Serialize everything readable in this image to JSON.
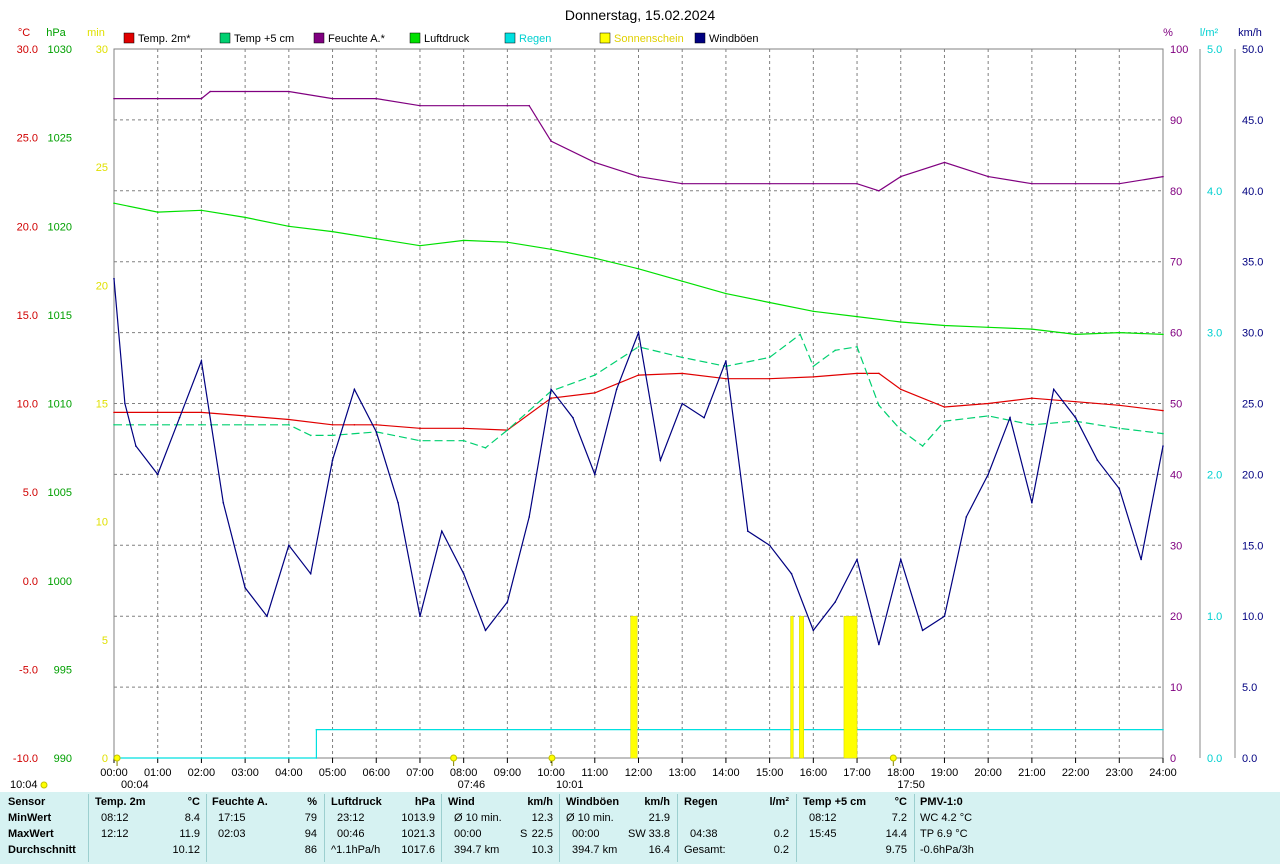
{
  "chart_data": {
    "type": "line",
    "title": "Donnerstag, 15.02.2024",
    "x_ticks": [
      "00:00",
      "01:00",
      "02:00",
      "03:00",
      "04:00",
      "05:00",
      "06:00",
      "07:00",
      "08:00",
      "09:00",
      "10:00",
      "11:00",
      "12:00",
      "13:00",
      "14:00",
      "15:00",
      "16:00",
      "17:00",
      "18:00",
      "19:00",
      "20:00",
      "21:00",
      "22:00",
      "23:00",
      "24:00"
    ],
    "axes": {
      "temp_c": {
        "label": "°C",
        "range": [
          -10,
          30
        ],
        "ticks": [
          "30.0",
          "25.0",
          "20.0",
          "15.0",
          "10.0",
          "5.0",
          "0.0",
          "-5.0",
          "-10.0"
        ],
        "color": "#d00000"
      },
      "pressure_hpa": {
        "label": "hPa",
        "range": [
          990,
          1030
        ],
        "ticks": [
          "1030",
          "1025",
          "1020",
          "1015",
          "1010",
          "1005",
          "1000",
          "995",
          "990"
        ],
        "color": "#00a000"
      },
      "sunshine_min": {
        "label": "min",
        "range": [
          0,
          30
        ],
        "ticks": [
          "30",
          "25",
          "20",
          "15",
          "10",
          "5",
          "0"
        ],
        "color": "#e0e000"
      },
      "humidity_pct": {
        "label": "%",
        "range": [
          0,
          100
        ],
        "ticks": [
          "100",
          "90",
          "80",
          "70",
          "60",
          "50",
          "40",
          "30",
          "20",
          "10",
          "0"
        ],
        "color": "#800080"
      },
      "rain_l": {
        "label": "l/m²",
        "range": [
          0,
          5
        ],
        "ticks": [
          "5.0",
          "4.0",
          "3.0",
          "2.0",
          "1.0",
          "0.0"
        ],
        "color": "#00d0d0"
      },
      "wind_kmh": {
        "label": "km/h",
        "range": [
          0,
          50
        ],
        "ticks": [
          "50.0",
          "45.0",
          "40.0",
          "35.0",
          "30.0",
          "25.0",
          "20.0",
          "15.0",
          "10.0",
          "5.0",
          "0.0"
        ],
        "color": "#000080"
      }
    },
    "legend": [
      {
        "name": "Temp. 2m*",
        "color": "#e00000"
      },
      {
        "name": "Temp +5 cm",
        "color": "#00d070"
      },
      {
        "name": "Feuchte A.*",
        "color": "#800080"
      },
      {
        "name": "Luftdruck",
        "color": "#00e000"
      },
      {
        "name": "Regen",
        "color": "#00e0e0"
      },
      {
        "name": "Sonnenschein",
        "color": "#ffff00"
      },
      {
        "name": "Windböen",
        "color": "#000080"
      }
    ],
    "legend_placement": "top",
    "grid": true,
    "series": [
      {
        "name": "Temp. 2m*",
        "axis": "temp_c",
        "color": "#e00000",
        "x": [
          0,
          1,
          2,
          3,
          4,
          5,
          5.5,
          6,
          7,
          8,
          9,
          10,
          11,
          12,
          13,
          14,
          15,
          16,
          17,
          17.5,
          18,
          19,
          20,
          21,
          22,
          23,
          24
        ],
        "y": [
          9.5,
          9.5,
          9.5,
          9.3,
          9.1,
          8.8,
          8.8,
          8.8,
          8.6,
          8.6,
          8.5,
          10.3,
          10.6,
          11.6,
          11.7,
          11.4,
          11.4,
          11.5,
          11.7,
          11.7,
          10.8,
          9.8,
          10.0,
          10.3,
          10.1,
          9.9,
          9.6
        ]
      },
      {
        "name": "Temp +5 cm",
        "axis": "temp_c",
        "color": "#00d070",
        "x": [
          0,
          1,
          2,
          3,
          4,
          4.5,
          5,
          6,
          7,
          8,
          8.5,
          9,
          10,
          11,
          12,
          13,
          14,
          15,
          15.7,
          16,
          16.5,
          17,
          17.5,
          18,
          18.5,
          19,
          20,
          21,
          22,
          23,
          24
        ],
        "y": [
          8.8,
          8.8,
          8.8,
          8.8,
          8.8,
          8.2,
          8.2,
          8.4,
          7.9,
          7.9,
          7.5,
          8.5,
          10.7,
          11.6,
          13.2,
          12.6,
          12.1,
          12.6,
          13.9,
          12.1,
          13.0,
          13.2,
          9.9,
          8.5,
          7.6,
          9.0,
          9.3,
          8.8,
          9.0,
          8.6,
          8.3
        ]
      },
      {
        "name": "Feuchte A.*",
        "axis": "humidity_pct",
        "color": "#800080",
        "x": [
          0,
          1,
          2,
          2.2,
          3,
          4,
          5,
          6,
          7,
          8,
          9,
          9.5,
          10,
          11,
          12,
          13,
          14,
          15,
          16,
          17,
          17.5,
          18,
          19,
          20,
          21,
          22,
          23,
          24
        ],
        "y": [
          93,
          93,
          93,
          94,
          94,
          94,
          93,
          93,
          92,
          92,
          92,
          92,
          87,
          84,
          82,
          81,
          81,
          81,
          81,
          81,
          80,
          82,
          84,
          82,
          81,
          81,
          81,
          82
        ]
      },
      {
        "name": "Luftdruck",
        "axis": "pressure_hpa",
        "color": "#00e000",
        "x": [
          0,
          1,
          2,
          3,
          4,
          5,
          6,
          7,
          8,
          9,
          10,
          11,
          12,
          13,
          14,
          15,
          16,
          17,
          18,
          19,
          20,
          21,
          22,
          23,
          24
        ],
        "y": [
          1021.3,
          1020.8,
          1020.9,
          1020.5,
          1020.0,
          1019.7,
          1019.3,
          1018.9,
          1019.2,
          1019.1,
          1018.7,
          1018.2,
          1017.6,
          1016.9,
          1016.2,
          1015.7,
          1015.2,
          1014.9,
          1014.6,
          1014.4,
          1014.3,
          1014.2,
          1013.9,
          1014.0,
          1013.9
        ]
      },
      {
        "name": "Windböen",
        "axis": "wind_kmh",
        "color": "#000080",
        "x": [
          0,
          0.25,
          0.5,
          1,
          1.5,
          2,
          2.5,
          3,
          3.5,
          4,
          4.5,
          5,
          5.5,
          6,
          6.5,
          7,
          7.5,
          8,
          8.5,
          9,
          9.5,
          10,
          10.5,
          11,
          11.5,
          12,
          12.5,
          13,
          13.5,
          14,
          14.5,
          15,
          15.5,
          16,
          16.5,
          17,
          17.5,
          18,
          18.5,
          19,
          19.5,
          20,
          20.5,
          21,
          21.5,
          22,
          22.5,
          23,
          23.5,
          24
        ],
        "y": [
          33.8,
          25,
          22,
          20,
          24,
          28,
          18,
          12,
          10,
          15,
          13,
          21,
          26,
          23,
          18,
          10,
          16,
          13,
          9,
          11,
          17,
          26,
          24,
          20,
          26,
          30,
          21,
          25,
          24,
          28,
          16,
          15,
          13,
          9,
          11,
          14,
          8,
          14,
          9,
          10,
          17,
          20,
          24,
          18,
          26,
          24,
          21,
          19,
          14,
          22
        ]
      },
      {
        "name": "Regen",
        "axis": "rain_l",
        "color": "#00e0e0",
        "x": [
          0,
          4.63,
          4.63,
          24
        ],
        "y": [
          0,
          0,
          0.2,
          0.2
        ]
      },
      {
        "name": "Sonnenschein",
        "axis": "sunshine_min",
        "color": "#ffff00",
        "bars": [
          {
            "x": 11.82,
            "w": 0.15,
            "v": 6
          },
          {
            "x": 15.48,
            "w": 0.06,
            "v": 6
          },
          {
            "x": 15.68,
            "w": 0.1,
            "v": 6
          },
          {
            "x": 16.7,
            "w": 0.3,
            "v": 6
          }
        ]
      }
    ],
    "events": [
      {
        "label": "10:04",
        "x": -2.0,
        "kind": "sunrise_label"
      },
      {
        "label": "00:04",
        "x": 0.07
      },
      {
        "label": "07:46",
        "x": 7.77
      },
      {
        "label": "10:01",
        "x": 10.02
      },
      {
        "label": "17:50",
        "x": 17.83
      }
    ]
  },
  "summary": {
    "sensor": {
      "h": "Sensor",
      "r1": "MinWert",
      "r2": "MaxWert",
      "r3": "Durchschnitt"
    },
    "temp2m": {
      "h": "Temp. 2m",
      "u": "°C",
      "min_t": "08:12",
      "min_v": "8.4",
      "max_t": "12:12",
      "max_v": "11.9",
      "avg_v": "10.12"
    },
    "feuchte": {
      "h": "Feuchte A.",
      "u": "%",
      "min_t": "17:15",
      "min_v": "79",
      "max_t": "02:03",
      "max_v": "94",
      "avg_v": "86"
    },
    "luftdruck": {
      "h": "Luftdruck",
      "u": "hPa",
      "min_t": "23:12",
      "min_v": "1013.9",
      "max_t": "00:46",
      "max_v": "1021.3",
      "avg_t": "^1.1hPa/h",
      "avg_v": "1017.6"
    },
    "wind": {
      "h": "Wind",
      "u": "km/h",
      "min_t": "Ø 10 min.",
      "min_v": "12.3",
      "max_t": "00:00",
      "max_d": "S",
      "max_v": "22.5",
      "avg_t": "394.7 km",
      "avg_v": "10.3"
    },
    "windboeen": {
      "h": "Windböen",
      "u": "km/h",
      "min_t": "Ø 10 min.",
      "min_v": "21.9",
      "max_t": "00:00",
      "max_d": "SW",
      "max_v": "33.8",
      "avg_t": "394.7 km",
      "avg_v": "16.4"
    },
    "regen": {
      "h": "Regen",
      "u": "l/m²",
      "max_t": "04:38",
      "max_v": "0.2",
      "avg_t": "Gesamt:",
      "avg_v": "0.2"
    },
    "temp5cm": {
      "h": "Temp +5 cm",
      "u": "°C",
      "min_t": "08:12",
      "min_v": "7.2",
      "max_t": "15:45",
      "max_v": "14.4",
      "avg_v": "9.75"
    },
    "pmv": {
      "h": "PMV-1:0",
      "r1": "WC 4.2 °C",
      "r2": "TP 6.9 °C",
      "r3": "-0.6hPa/3h"
    }
  }
}
